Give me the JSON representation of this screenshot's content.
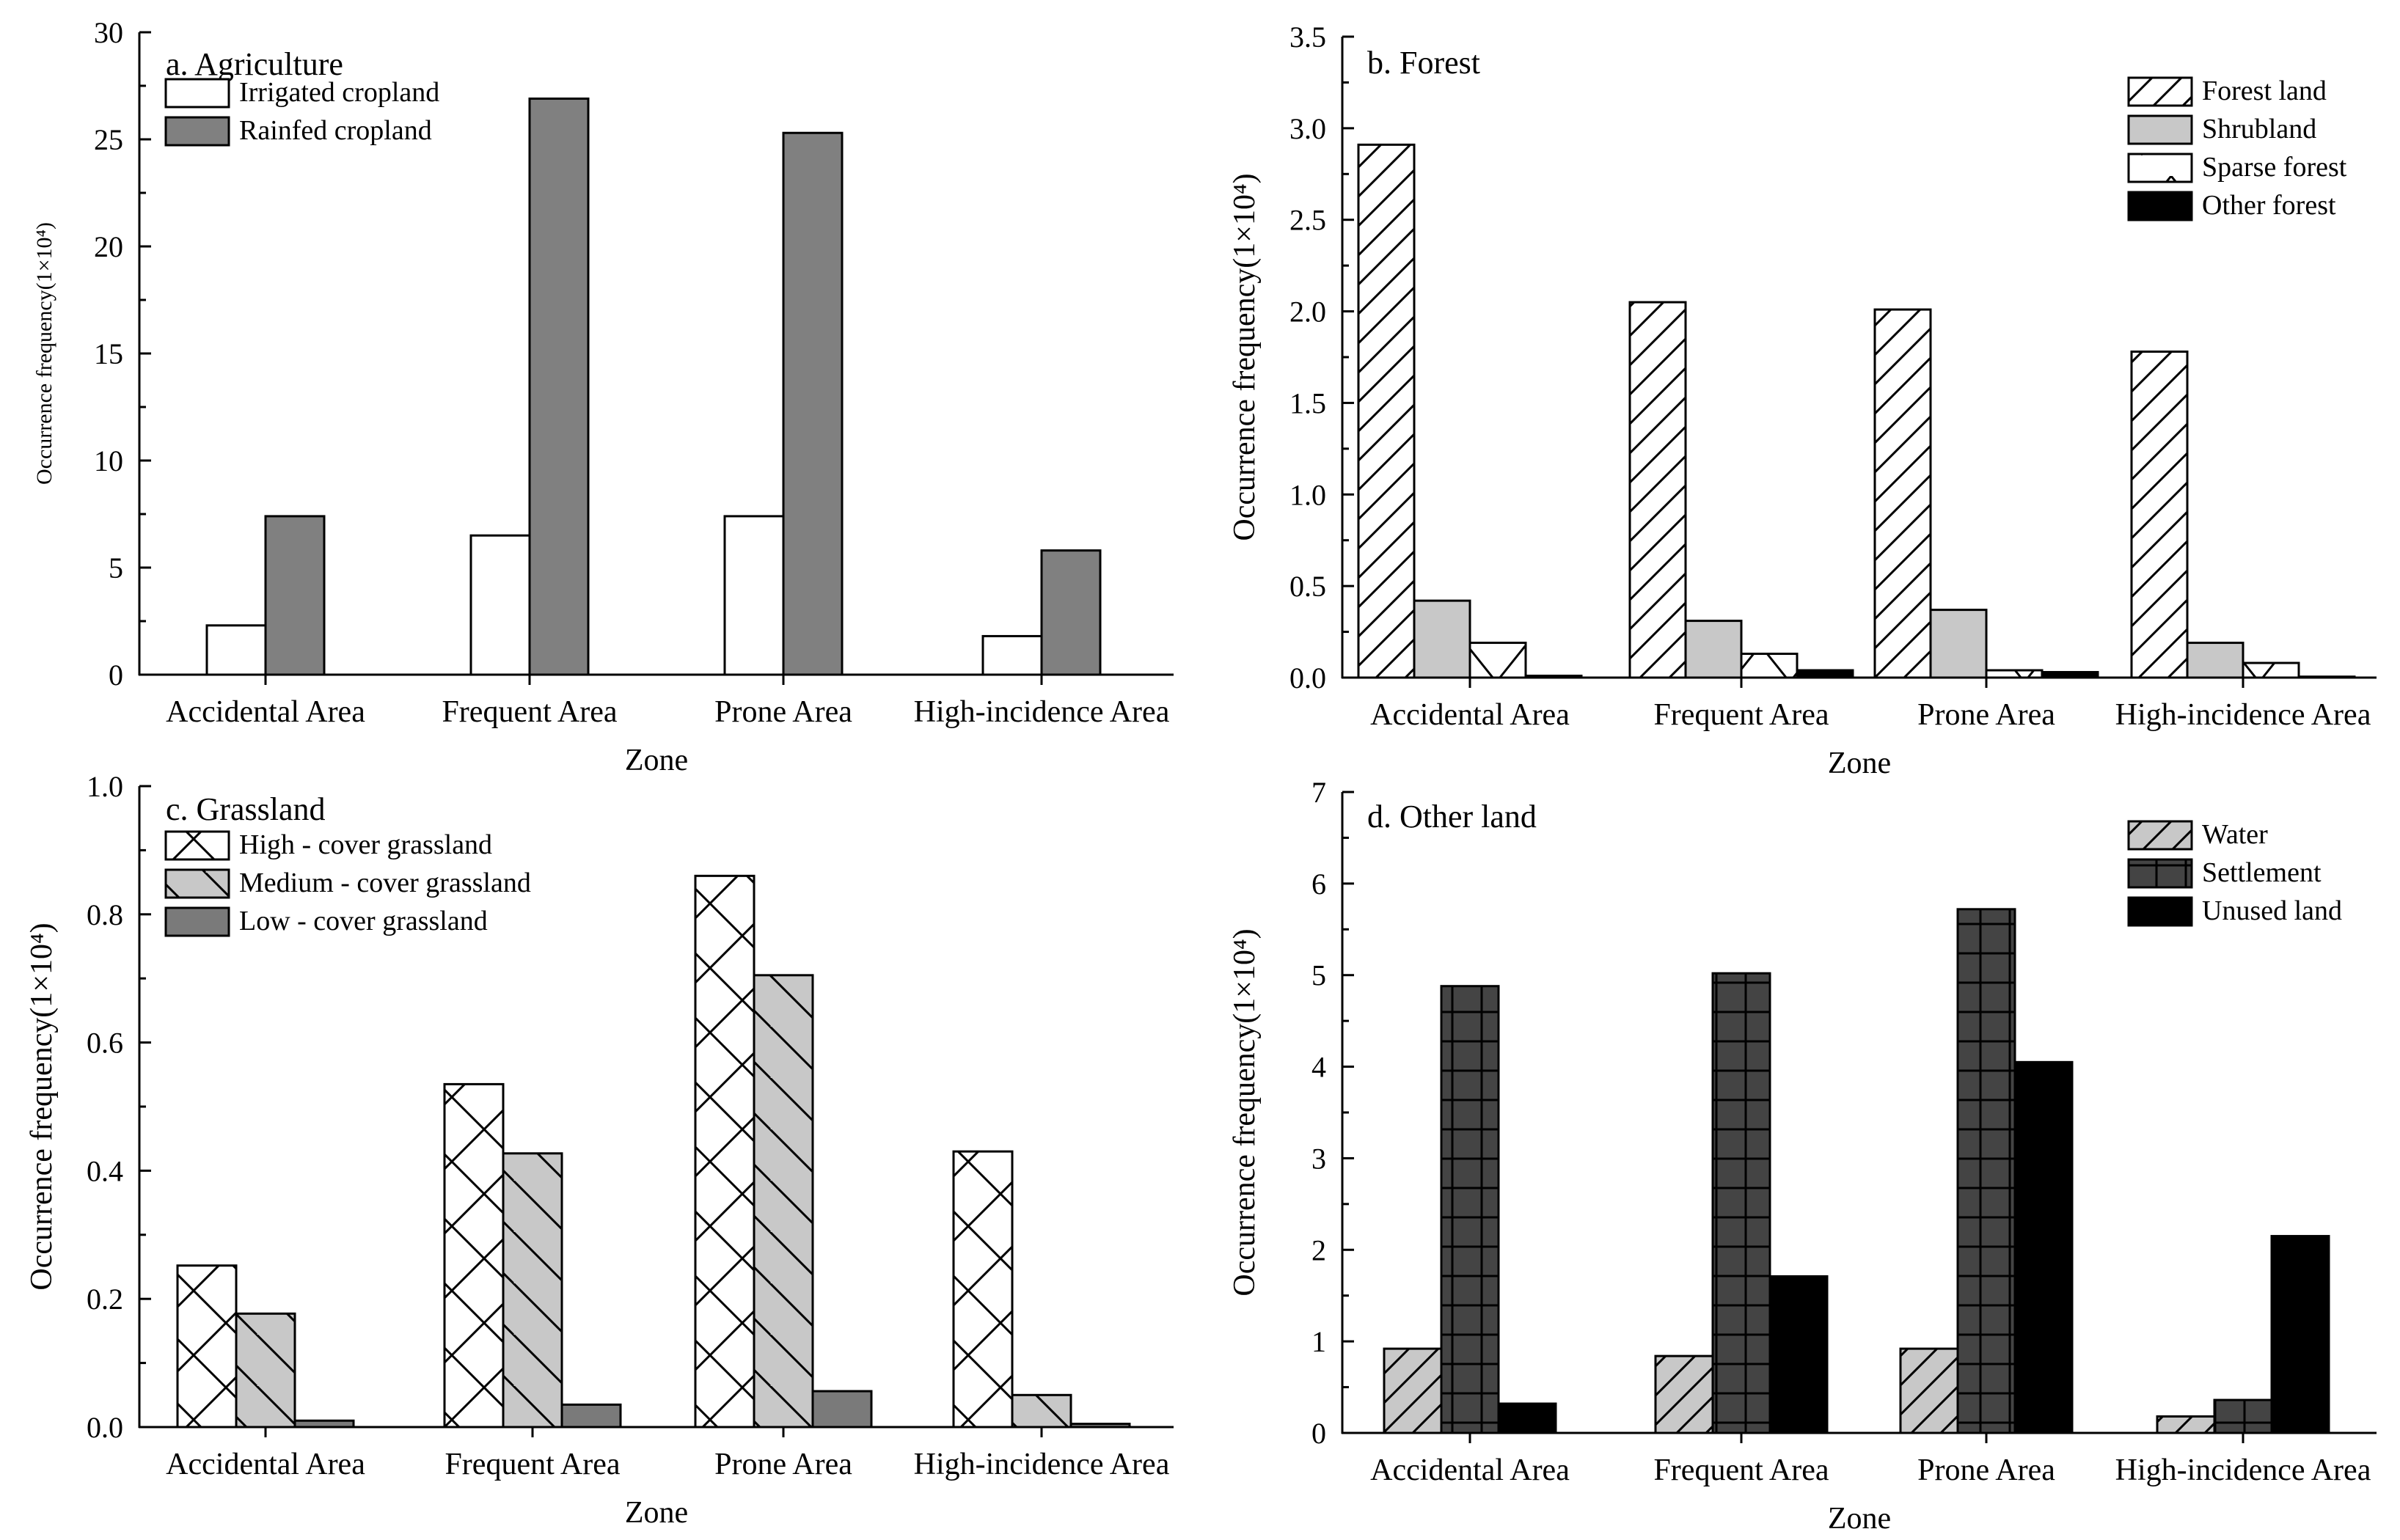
{
  "chart_data": [
    {
      "type": "bar",
      "title": "a. Agriculture",
      "xlabel": "Zone",
      "ylabel": "Occurrence frequency(1×10⁴)",
      "ylim": [
        0,
        30
      ],
      "yticks": [
        "0",
        "5",
        "10",
        "15",
        "20",
        "25",
        "30"
      ],
      "categories": [
        "Accidental Area",
        "Frequent Area",
        "Prone Area",
        "High-incidence Area"
      ],
      "legend_position": "top-left",
      "series": [
        {
          "name": "Irrigated cropland",
          "pattern": "white",
          "values": [
            2.3,
            6.5,
            7.4,
            1.8
          ]
        },
        {
          "name": "Rainfed cropland",
          "pattern": "gray",
          "values": [
            7.4,
            26.9,
            25.3,
            5.8
          ]
        }
      ]
    },
    {
      "type": "bar",
      "title": "b. Forest",
      "xlabel": "Zone",
      "ylabel": "Occurrence frequency(1×10⁴)",
      "ylim": [
        0,
        3.5
      ],
      "yticks": [
        "0.0",
        "0.5",
        "1.0",
        "1.5",
        "2.0",
        "2.5",
        "3.0",
        "3.5"
      ],
      "categories": [
        "Accidental Area",
        "Frequent Area",
        "Prone Area",
        "High-incidence Area"
      ],
      "legend_position": "top-right",
      "series": [
        {
          "name": "Forest land",
          "pattern": "diag",
          "values": [
            2.91,
            2.05,
            2.01,
            1.78
          ]
        },
        {
          "name": "Shrubland",
          "pattern": "lightgray",
          "values": [
            0.42,
            0.31,
            0.37,
            0.19
          ]
        },
        {
          "name": "Sparse forest",
          "pattern": "sparse",
          "values": [
            0.19,
            0.13,
            0.04,
            0.08
          ]
        },
        {
          "name": "Other forest",
          "pattern": "black",
          "values": [
            0.01,
            0.04,
            0.03,
            0.005
          ]
        }
      ]
    },
    {
      "type": "bar",
      "title": "c. Grassland",
      "xlabel": "Zone",
      "ylabel": "Occurrence frequency(1×10⁴)",
      "ylim": [
        0,
        1.0
      ],
      "yticks": [
        "0.0",
        "0.2",
        "0.4",
        "0.6",
        "0.8",
        "1.0"
      ],
      "categories": [
        "Accidental Area",
        "Frequent Area",
        "Prone Area",
        "High-incidence Area"
      ],
      "legend_position": "top-left",
      "series": [
        {
          "name": "High - cover grassland",
          "pattern": "cross",
          "values": [
            0.252,
            0.535,
            0.86,
            0.43
          ]
        },
        {
          "name": "Medium - cover grassland",
          "pattern": "backdiag",
          "values": [
            0.177,
            0.427,
            0.705,
            0.05
          ]
        },
        {
          "name": "Low - cover grassland",
          "pattern": "midgray",
          "values": [
            0.01,
            0.035,
            0.056,
            0.005
          ]
        }
      ]
    },
    {
      "type": "bar",
      "title": "d. Other land",
      "xlabel": "Zone",
      "ylabel": "Occurrence frequency(1×10⁴)",
      "ylim": [
        0,
        7
      ],
      "yticks": [
        "0",
        "1",
        "2",
        "3",
        "4",
        "5",
        "6",
        "7"
      ],
      "categories": [
        "Accidental Area",
        "Frequent Area",
        "Prone Area",
        "High-incidence Area"
      ],
      "legend_position": "top-right",
      "series": [
        {
          "name": "Water",
          "pattern": "graydiag",
          "values": [
            0.92,
            0.84,
            0.92,
            0.18
          ]
        },
        {
          "name": "Settlement",
          "pattern": "grid",
          "values": [
            4.88,
            5.02,
            5.72,
            0.36
          ]
        },
        {
          "name": "Unused land",
          "pattern": "black",
          "values": [
            0.32,
            1.71,
            4.05,
            2.15
          ]
        }
      ]
    }
  ]
}
